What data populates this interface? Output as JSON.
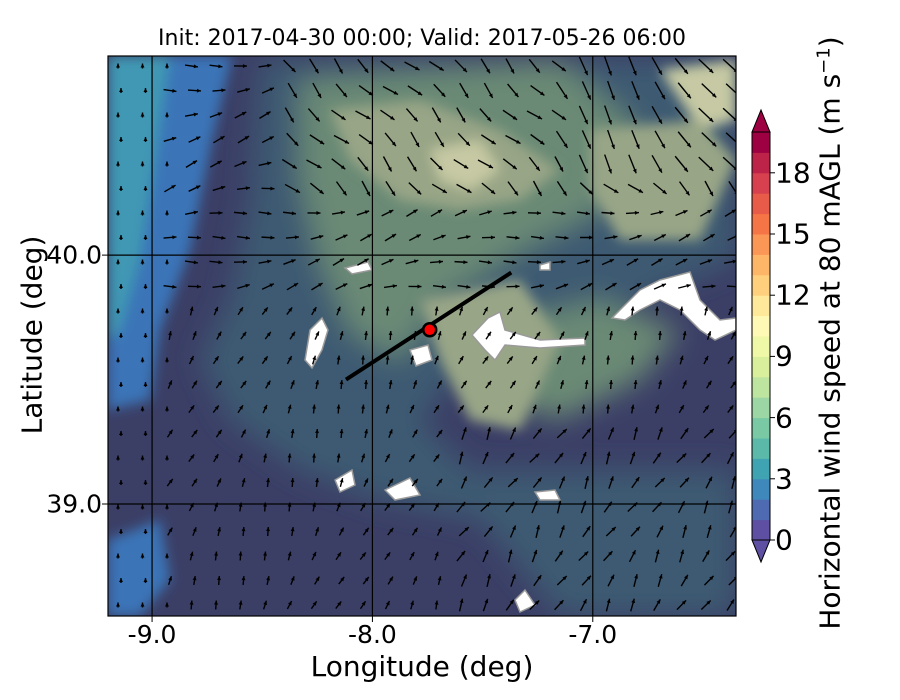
{
  "title": "Init: 2017-04-30 00:00; Valid: 2017-05-26 06:00",
  "x_axis": {
    "label": "Longitude (deg)",
    "ticks": [
      "-9.0",
      "-8.0",
      "-7.0"
    ],
    "values": [
      -9.0,
      -8.0,
      -7.0
    ],
    "range": [
      -9.2,
      -6.35
    ]
  },
  "y_axis": {
    "label": "Latitude (deg)",
    "ticks": [
      "40.0",
      "39.0"
    ],
    "values": [
      40.0,
      39.0
    ],
    "range": [
      38.55,
      40.8
    ]
  },
  "colorbar": {
    "label": "Horizontal wind speed at 80 mAGL (m s",
    "label_sup": "−1",
    "label_close": ")",
    "ticks": [
      "0",
      "3",
      "6",
      "9",
      "12",
      "15",
      "18"
    ],
    "values": [
      0,
      3,
      6,
      9,
      12,
      15,
      18
    ],
    "range": [
      0,
      20
    ],
    "colors": [
      "#5e4fa2",
      "#4e6bb1",
      "#3f88bc",
      "#3fa3b1",
      "#5ab9a8",
      "#79c9a4",
      "#9bd6a4",
      "#bde5a0",
      "#d9ef9b",
      "#eff8a6",
      "#fff9b6",
      "#fee899",
      "#fed07e",
      "#fdb567",
      "#fa9656",
      "#f57547",
      "#e85b48",
      "#d7404e",
      "#bd2349",
      "#9e0142"
    ],
    "extend": "both"
  },
  "map_colors": {
    "sea": "#3a74b8",
    "coast": "#3f98b4",
    "low": "#3b3f66",
    "mid": "#3c5a72",
    "high": "#6b8a74",
    "ridge": "#98a586",
    "peak": "#c6c9a3"
  },
  "transect": {
    "start": [
      -8.12,
      39.5
    ],
    "end": [
      -7.37,
      39.93
    ]
  },
  "site_marker": {
    "lon": -7.74,
    "lat": 39.7,
    "color": "#ff0000"
  }
}
